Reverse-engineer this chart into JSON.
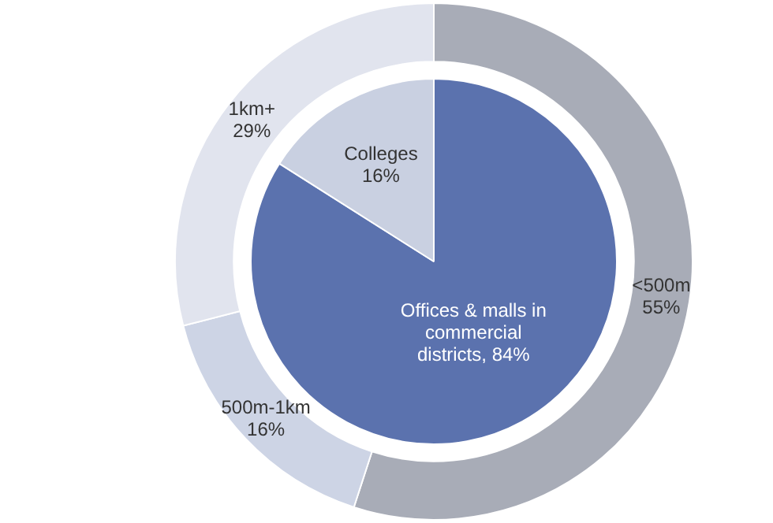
{
  "chart_data": [
    {
      "type": "pie",
      "categories": [
        "Offices & malls in commercial districts",
        "Colleges"
      ],
      "values": [
        84,
        16
      ],
      "value_labels": [
        "84%",
        "16%"
      ],
      "colors": [
        "#5b72ae",
        "#c9d0e1"
      ]
    },
    {
      "type": "donut",
      "categories": [
        "<500m",
        "500m-1km",
        "1km+"
      ],
      "values": [
        55,
        16,
        29
      ],
      "value_labels": [
        "55%",
        "16%",
        "29%"
      ],
      "colors": [
        "#a8acb7",
        "#cdd4e5",
        "#e1e4ee"
      ]
    }
  ]
}
